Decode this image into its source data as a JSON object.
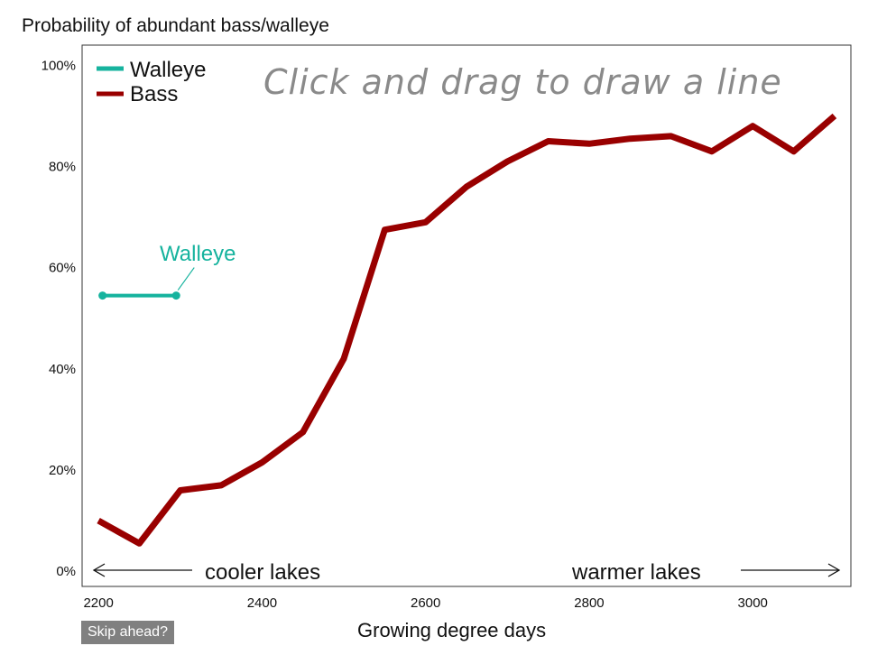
{
  "chart_data": {
    "type": "line",
    "title": "Probability of abundant bass/walleye",
    "xlabel": "Growing degree days",
    "ylabel": "",
    "xlim": [
      2180,
      3120
    ],
    "ylim": [
      -3,
      104
    ],
    "x_ticks": [
      2200,
      2400,
      2600,
      2800,
      3000
    ],
    "y_ticks": [
      0,
      20,
      40,
      60,
      80,
      100
    ],
    "y_tick_labels": [
      "0%",
      "20%",
      "40%",
      "60%",
      "80%",
      "100%"
    ],
    "legend": {
      "position": "top-left",
      "entries": [
        "Walleye",
        "Bass"
      ]
    },
    "series": [
      {
        "name": "Bass",
        "color": "#990000",
        "x": [
          2200,
          2250,
          2300,
          2350,
          2400,
          2450,
          2500,
          2550,
          2600,
          2650,
          2700,
          2750,
          2800,
          2850,
          2900,
          2950,
          3000,
          3050,
          3100
        ],
        "y": [
          10,
          5.5,
          16,
          17,
          21.5,
          27.5,
          42,
          67.5,
          69,
          76,
          81,
          85,
          84.5,
          85.5,
          86,
          83,
          88,
          83,
          90
        ]
      },
      {
        "name": "Walleye",
        "color": "#16b39e",
        "x": [
          2205,
          2295
        ],
        "y": [
          54.5,
          54.5
        ]
      }
    ],
    "annotations": {
      "instruction": "Click and drag to draw a line",
      "series_label": "Walleye",
      "left_arrow": "cooler lakes",
      "right_arrow": "warmer lakes"
    }
  },
  "controls": {
    "skip_label": "Skip ahead?"
  }
}
